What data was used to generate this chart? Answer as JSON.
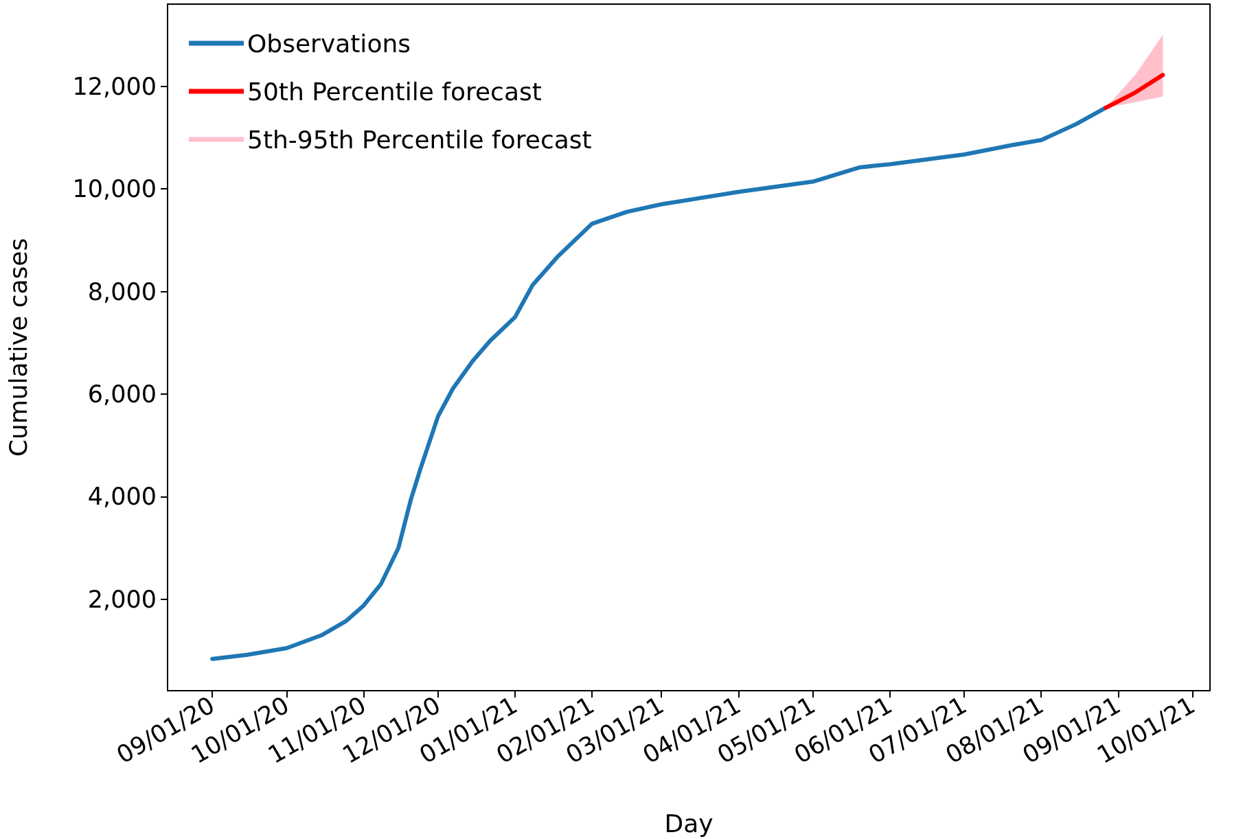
{
  "chart_data": {
    "type": "line",
    "xlabel": "Day",
    "ylabel": "Cumulative cases",
    "xlim": [
      "2020-08-14",
      "2021-10-08"
    ],
    "ylim": [
      220,
      13600
    ],
    "xticks": [
      {
        "value": "2020-09-01",
        "label": "09/01/20"
      },
      {
        "value": "2020-10-01",
        "label": "10/01/20"
      },
      {
        "value": "2020-11-01",
        "label": "11/01/20"
      },
      {
        "value": "2020-12-01",
        "label": "12/01/20"
      },
      {
        "value": "2021-01-01",
        "label": "01/01/21"
      },
      {
        "value": "2021-02-01",
        "label": "02/01/21"
      },
      {
        "value": "2021-03-01",
        "label": "03/01/21"
      },
      {
        "value": "2021-04-01",
        "label": "04/01/21"
      },
      {
        "value": "2021-05-01",
        "label": "05/01/21"
      },
      {
        "value": "2021-06-01",
        "label": "06/01/21"
      },
      {
        "value": "2021-07-01",
        "label": "07/01/21"
      },
      {
        "value": "2021-08-01",
        "label": "08/01/21"
      },
      {
        "value": "2021-09-01",
        "label": "09/01/21"
      },
      {
        "value": "2021-10-01",
        "label": "10/01/21"
      }
    ],
    "yticks": [
      {
        "value": 2000,
        "label": "2,000"
      },
      {
        "value": 4000,
        "label": "4,000"
      },
      {
        "value": 6000,
        "label": "6,000"
      },
      {
        "value": 8000,
        "label": "8,000"
      },
      {
        "value": 10000,
        "label": "10,000"
      },
      {
        "value": 12000,
        "label": "12,000"
      }
    ],
    "grid": false,
    "legend": "top left",
    "marker": "none",
    "line_style": "solid",
    "series": [
      {
        "name": "Observations",
        "color": "#1f77b4",
        "x": [
          "2020-09-01",
          "2020-09-15",
          "2020-10-01",
          "2020-10-15",
          "2020-10-25",
          "2020-11-01",
          "2020-11-08",
          "2020-11-15",
          "2020-11-20",
          "2020-11-24",
          "2020-12-01",
          "2020-12-07",
          "2020-12-15",
          "2020-12-22",
          "2021-01-01",
          "2021-01-08",
          "2021-01-18",
          "2021-02-01",
          "2021-02-15",
          "2021-03-01",
          "2021-04-01",
          "2021-05-01",
          "2021-05-20",
          "2021-06-01",
          "2021-07-01",
          "2021-07-20",
          "2021-08-01",
          "2021-08-15",
          "2021-08-27"
        ],
        "values": [
          840,
          920,
          1050,
          1300,
          1580,
          1880,
          2300,
          3000,
          3940,
          4560,
          5570,
          6110,
          6650,
          7040,
          7500,
          8120,
          8670,
          9320,
          9550,
          9700,
          9940,
          10140,
          10420,
          10480,
          10670,
          10850,
          10950,
          11260,
          11580
        ]
      },
      {
        "name": "50th Percentile forecast",
        "color": "#ff0000",
        "x": [
          "2021-08-27",
          "2021-09-08",
          "2021-09-19"
        ],
        "values": [
          11580,
          11880,
          12220
        ],
        "lower": [
          11580,
          11690,
          11800
        ],
        "upper": [
          11580,
          12230,
          13000
        ]
      },
      {
        "name": "5th-95th Percentile forecast",
        "type": "area",
        "color": "#ffc0cb"
      }
    ]
  }
}
